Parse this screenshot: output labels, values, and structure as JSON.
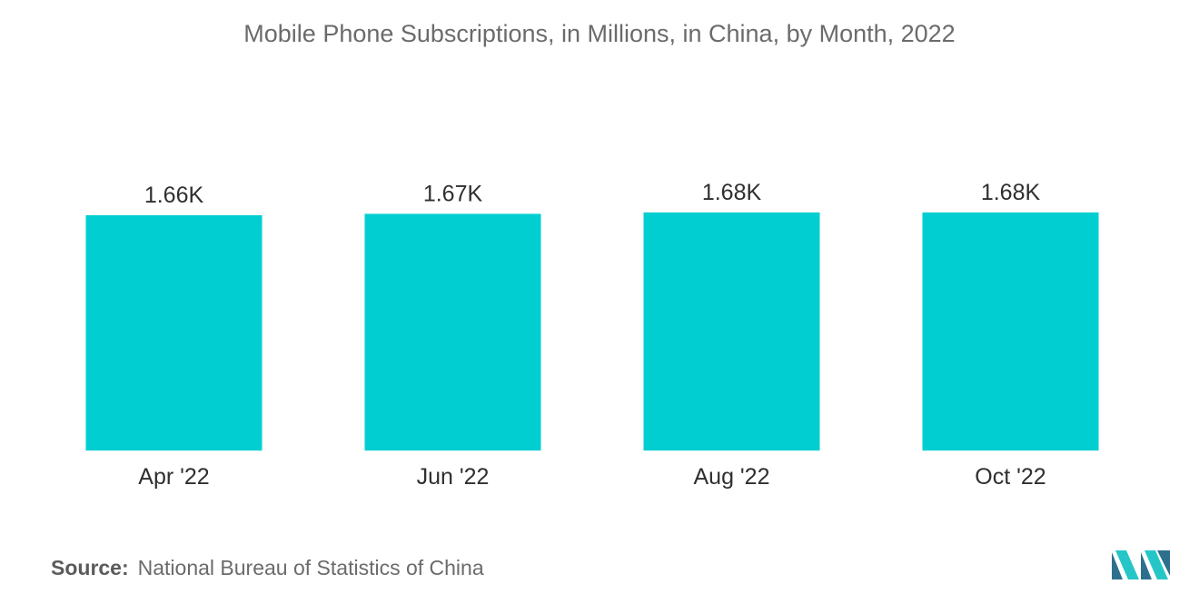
{
  "chart_data": {
    "type": "bar",
    "title": "Mobile Phone Subscriptions, in Millions, in China, by Month, 2022",
    "categories": [
      "Apr '22",
      "Jun '22",
      "Aug '22",
      "Oct '22"
    ],
    "values": [
      1660,
      1670,
      1680,
      1680
    ],
    "data_labels": [
      "1.66K",
      "1.67K",
      "1.68K",
      "1.68K"
    ],
    "xlabel": "",
    "ylabel": "",
    "grid": false,
    "legend": "none",
    "bar_color": "#00CED1"
  },
  "source": {
    "label": "Source:",
    "text": "National Bureau of Statistics of China"
  },
  "colors": {
    "bar": "#00CED1",
    "logo_dark": "#2E6F8E",
    "logo_light": "#26C6C8"
  },
  "logo": {
    "icon": "mordor-intelligence-logo"
  }
}
